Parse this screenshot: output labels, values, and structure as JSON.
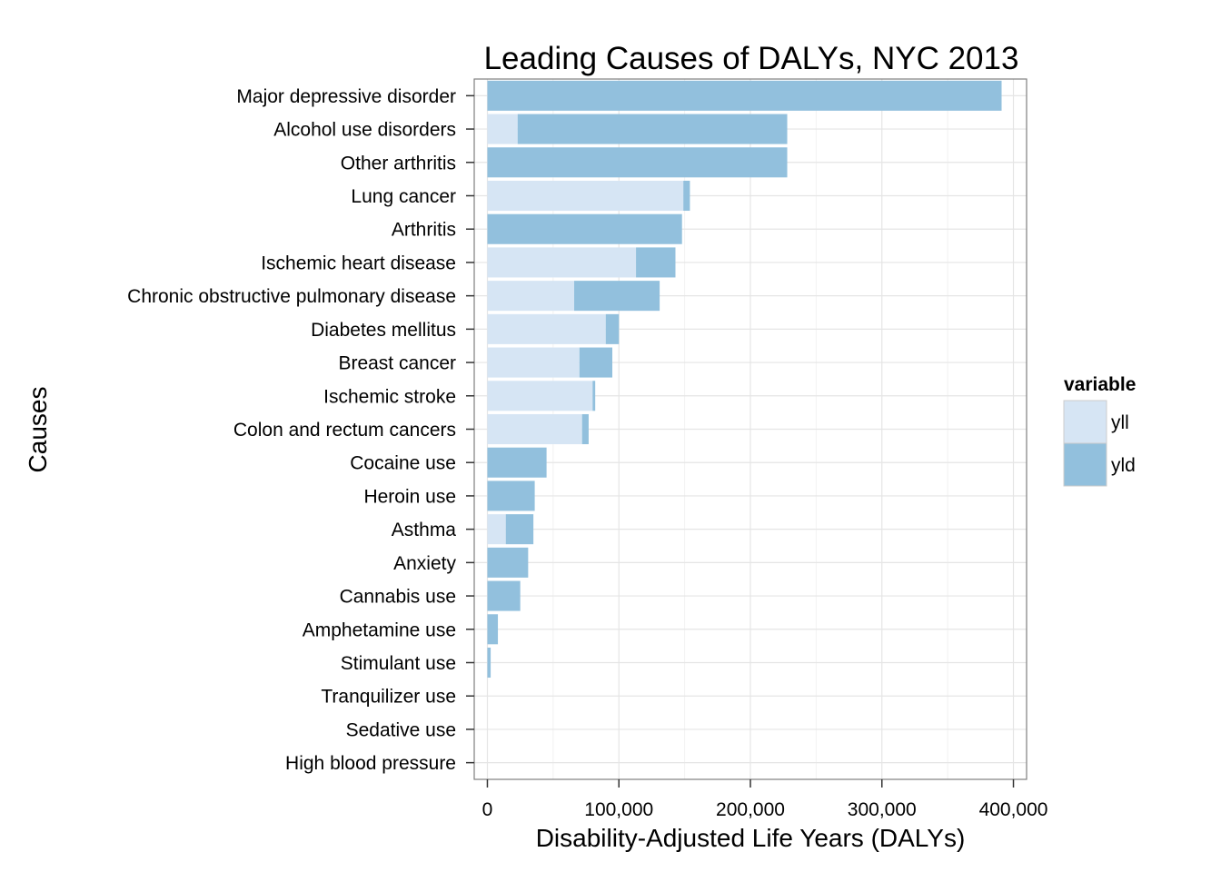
{
  "chart_data": {
    "type": "bar",
    "orientation": "horizontal",
    "stacked": true,
    "title": "Leading Causes of DALYs, NYC 2013",
    "xlabel": "Disability-Adjusted Life Years (DALYs)",
    "ylabel": "Causes",
    "xlim": [
      -10000,
      410000
    ],
    "x_ticks": [
      0,
      100000,
      200000,
      300000,
      400000
    ],
    "x_tick_labels": [
      "0",
      "100,000",
      "200,000",
      "300,000",
      "400,000"
    ],
    "grid": true,
    "legend": {
      "title": "variable",
      "position": "right"
    },
    "categories": [
      "Major depressive disorder",
      "Alcohol use disorders",
      "Other arthritis",
      "Lung cancer",
      "Arthritis",
      "Ischemic heart disease",
      "Chronic obstructive pulmonary disease",
      "Diabetes mellitus",
      "Breast cancer",
      "Ischemic stroke",
      "Colon and rectum cancers",
      "Cocaine use",
      "Heroin use",
      "Asthma",
      "Anxiety",
      "Cannabis use",
      "Amphetamine use",
      "Stimulant use",
      "Tranquilizer use",
      "Sedative use",
      "High blood pressure"
    ],
    "series": [
      {
        "name": "yll",
        "color": "#d6e5f4",
        "values": [
          0,
          23000,
          0,
          149000,
          0,
          113000,
          66000,
          90000,
          70000,
          80000,
          72000,
          0,
          0,
          14000,
          0,
          0,
          0,
          0,
          0,
          0,
          0
        ]
      },
      {
        "name": "yld",
        "color": "#92c0dd",
        "values": [
          391000,
          205000,
          228000,
          5000,
          148000,
          30000,
          65000,
          10000,
          25000,
          2000,
          5000,
          45000,
          36000,
          21000,
          31000,
          25000,
          8000,
          2500,
          0,
          0,
          0
        ]
      }
    ]
  }
}
